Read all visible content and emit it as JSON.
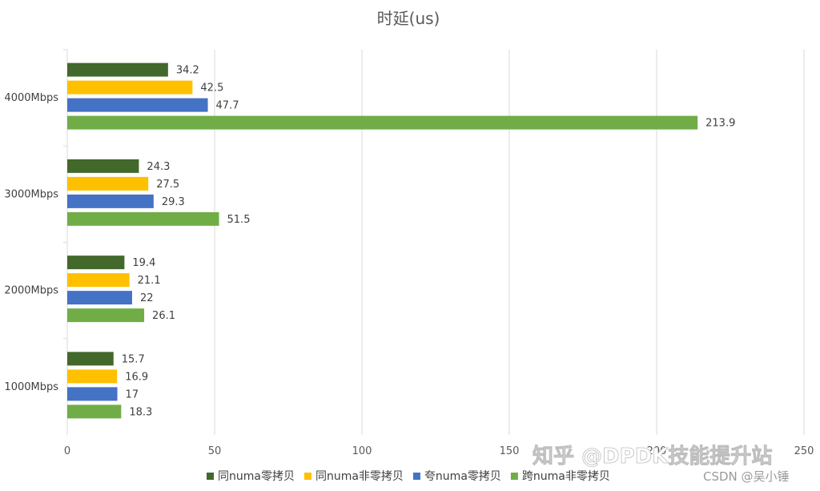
{
  "chart_data": {
    "type": "bar",
    "orientation": "horizontal",
    "title": "时延(us)",
    "categories": [
      "1000Mbps",
      "2000Mbps",
      "3000Mbps",
      "4000Mbps"
    ],
    "series": [
      {
        "name": "同numa零拷贝",
        "color": "#43682b",
        "values": [
          15.7,
          19.4,
          24.3,
          34.2
        ]
      },
      {
        "name": "同numa非零拷贝",
        "color": "#ffc000",
        "values": [
          16.9,
          21.1,
          27.5,
          42.5
        ]
      },
      {
        "name": "夸numa零拷贝",
        "color": "#4472c4",
        "values": [
          17,
          22,
          29.3,
          47.7
        ]
      },
      {
        "name": "跨numa非零拷贝",
        "color": "#70ad47",
        "values": [
          18.3,
          26.1,
          51.5,
          213.9
        ]
      }
    ],
    "xlim": [
      0,
      250
    ],
    "xticks": [
      "0",
      "50",
      "100",
      "150",
      "200",
      "250"
    ],
    "grid": true,
    "legend_position": "bottom"
  },
  "watermark": {
    "main": "知乎 @DPDK技能提升站",
    "sub": "CSDN @吴小锤"
  }
}
